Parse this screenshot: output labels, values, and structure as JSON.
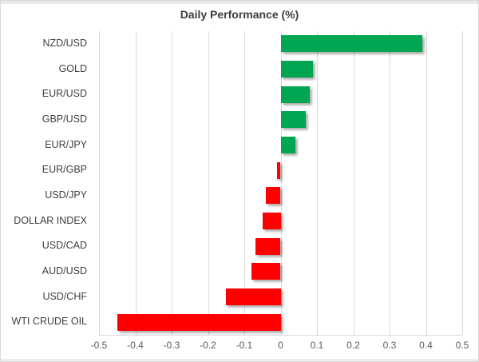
{
  "chart_data": {
    "type": "bar",
    "orientation": "horizontal",
    "title": "Daily Performance (%)",
    "categories": [
      "NZD/USD",
      "GOLD",
      "EUR/USD",
      "GBP/USD",
      "EUR/JPY",
      "EUR/GBP",
      "USD/JPY",
      "DOLLAR INDEX",
      "USD/CAD",
      "AUD/USD",
      "USD/CHF",
      "WTI CRUDE OIL"
    ],
    "values": [
      0.39,
      0.09,
      0.08,
      0.07,
      0.04,
      -0.01,
      -0.04,
      -0.05,
      -0.07,
      -0.08,
      -0.15,
      -0.45
    ],
    "xlabel": "",
    "ylabel": "",
    "xlim": [
      -0.5,
      0.5
    ],
    "x_ticks": [
      "-0.5",
      "-0.4",
      "-0.3",
      "-0.2",
      "-0.1",
      "0",
      "0.1",
      "0.2",
      "0.3",
      "0.4",
      "0.5"
    ],
    "grid": "vertical",
    "legend": "none",
    "colors": {
      "positive": "#00a651",
      "negative": "#fe0000",
      "gridline": "#d9d9d9",
      "title_text": "#3d3d3d",
      "category_text": "#404040",
      "tick_text": "#595959"
    }
  }
}
